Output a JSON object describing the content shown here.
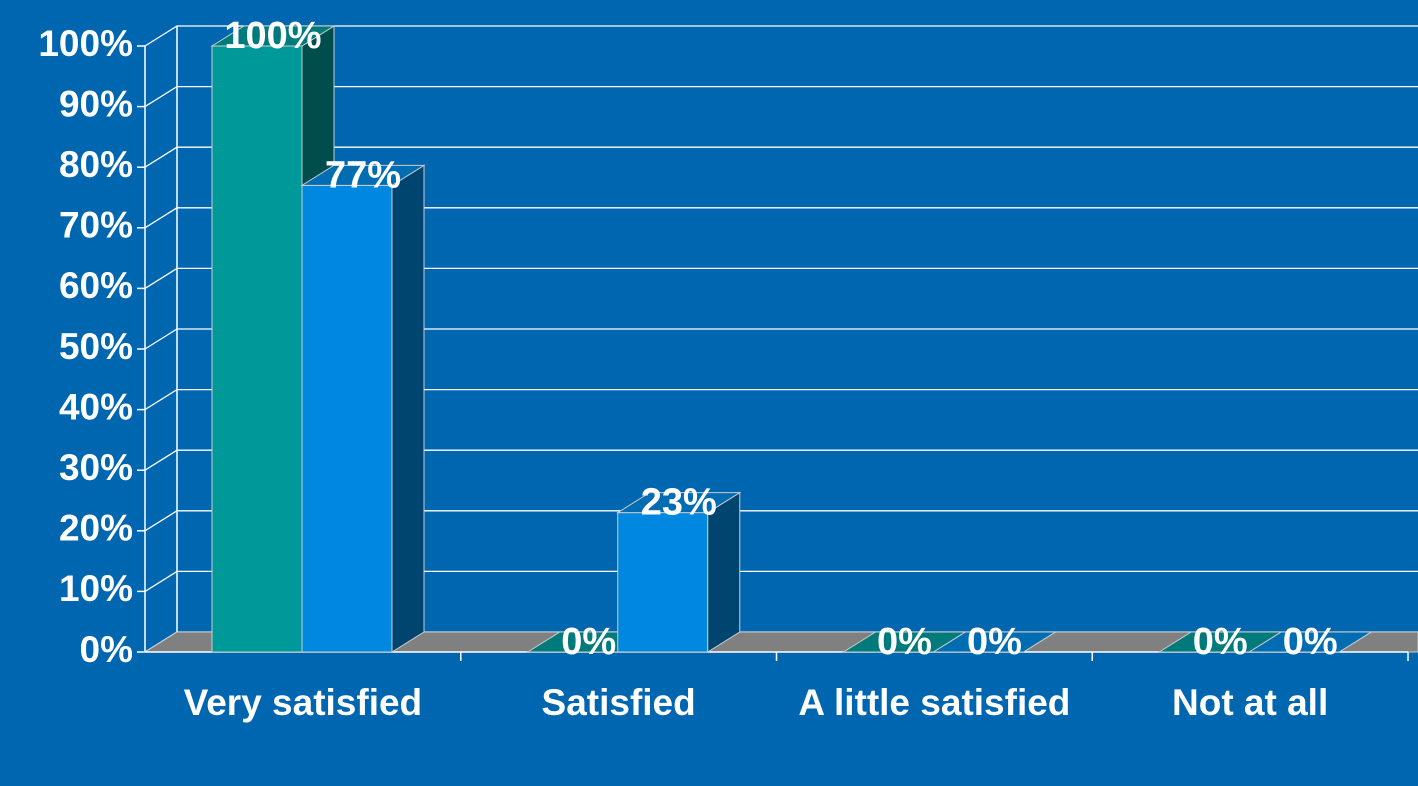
{
  "chart_data": {
    "type": "bar3d",
    "categories": [
      "Very satisfied",
      "Satisfied",
      "A little satisfied",
      "Not at all"
    ],
    "series": [
      {
        "color": "#009999",
        "values": [
          100,
          0,
          0,
          0
        ],
        "value_labels": [
          "100%",
          "0%",
          "0%",
          "0%"
        ]
      },
      {
        "color": "#0088e0",
        "values": [
          77,
          23,
          0,
          0
        ],
        "value_labels": [
          "77%",
          "23%",
          "0%",
          "0%"
        ]
      }
    ],
    "ylim": [
      0,
      100
    ],
    "yticks": [
      {
        "value": 0,
        "label": "0%"
      },
      {
        "value": 10,
        "label": "10%"
      },
      {
        "value": 20,
        "label": "20%"
      },
      {
        "value": 30,
        "label": "30%"
      },
      {
        "value": 40,
        "label": "40%"
      },
      {
        "value": 50,
        "label": "50%"
      },
      {
        "value": 60,
        "label": "60%"
      },
      {
        "value": 70,
        "label": "70%"
      },
      {
        "value": 80,
        "label": "80%"
      },
      {
        "value": 90,
        "label": "90%"
      },
      {
        "value": 100,
        "label": "100%"
      }
    ],
    "grid": true
  }
}
